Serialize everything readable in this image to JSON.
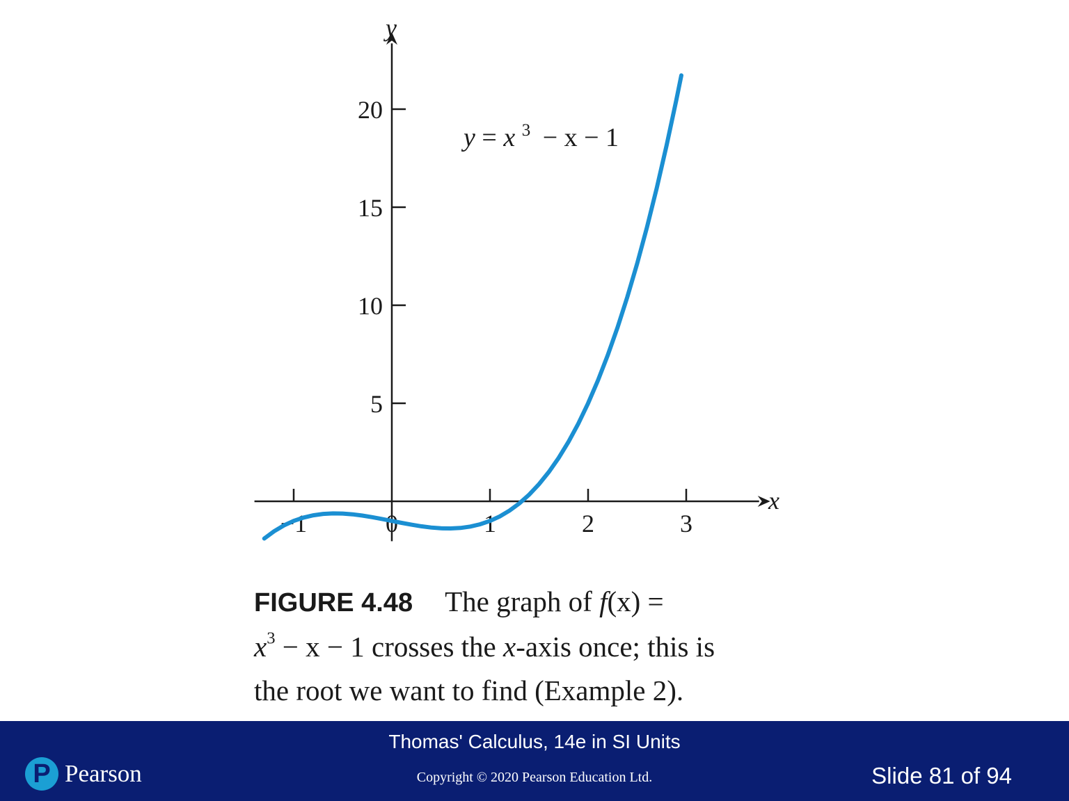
{
  "chart_data": {
    "type": "line",
    "function": "x^3 - x - 1",
    "equation_label": {
      "lhs": "y",
      "base": "x",
      "exp": "3",
      "rest": "− x − 1"
    },
    "xlabel": "x",
    "ylabel": "y",
    "xlim": [
      -1.4,
      3.7
    ],
    "ylim": [
      -2,
      23
    ],
    "x_ticks": [
      {
        "value": -1,
        "label": "−1"
      },
      {
        "value": 0,
        "label": "0"
      },
      {
        "value": 1,
        "label": "1"
      },
      {
        "value": 2,
        "label": "2"
      },
      {
        "value": 3,
        "label": "3"
      }
    ],
    "y_ticks": [
      {
        "value": 5,
        "label": "5"
      },
      {
        "value": 10,
        "label": "10"
      },
      {
        "value": 15,
        "label": "15"
      },
      {
        "value": 20,
        "label": "20"
      }
    ],
    "series": [
      {
        "color": "#1b8fd2",
        "x": [
          -1.3,
          -1.2,
          -1.1,
          -1.0,
          -0.9,
          -0.8,
          -0.7,
          -0.6,
          -0.5,
          -0.4,
          -0.3,
          -0.2,
          -0.1,
          0.0,
          0.1,
          0.2,
          0.3,
          0.4,
          0.5,
          0.6,
          0.7,
          0.8,
          0.9,
          1.0,
          1.1,
          1.2,
          1.3,
          1.4,
          1.5,
          1.6,
          1.7,
          1.8,
          1.9,
          2.0,
          2.1,
          2.2,
          2.3,
          2.4,
          2.5,
          2.6,
          2.7,
          2.8,
          2.9,
          2.95
        ],
        "y": [
          -1.897,
          -1.528,
          -1.231,
          -1.0,
          -0.829,
          -0.712,
          -0.643,
          -0.616,
          -0.625,
          -0.664,
          -0.727,
          -0.808,
          -0.901,
          -1.0,
          -1.099,
          -1.192,
          -1.273,
          -1.336,
          -1.375,
          -1.384,
          -1.357,
          -1.288,
          -1.171,
          -1.0,
          -0.769,
          -0.472,
          -0.103,
          0.344,
          0.875,
          1.496,
          2.213,
          3.032,
          3.959,
          5.0,
          6.161,
          7.448,
          8.867,
          10.424,
          12.125,
          13.976,
          15.983,
          18.152,
          20.489,
          21.724
        ]
      }
    ]
  },
  "caption": {
    "figure_label": "FIGURE 4.48",
    "line1_text": "The graph of ",
    "line1_func": "f",
    "line1_arg": "(x) =",
    "line2_base": "x",
    "line2_exp": "3",
    "line2_rest": " − x − 1 crosses the ",
    "line2_axis": "x",
    "line2_tail": "-axis once; this is",
    "line3": "the root we want to find (Example 2)."
  },
  "footer": {
    "book_title": "Thomas' Calculus, 14e in SI Units",
    "copyright": "Copyright © 2020 Pearson Education Ltd.",
    "slide_number": "Slide 81 of 94",
    "logo_mark": "P",
    "logo_text": "Pearson",
    "background_color": "#0a1e72"
  }
}
